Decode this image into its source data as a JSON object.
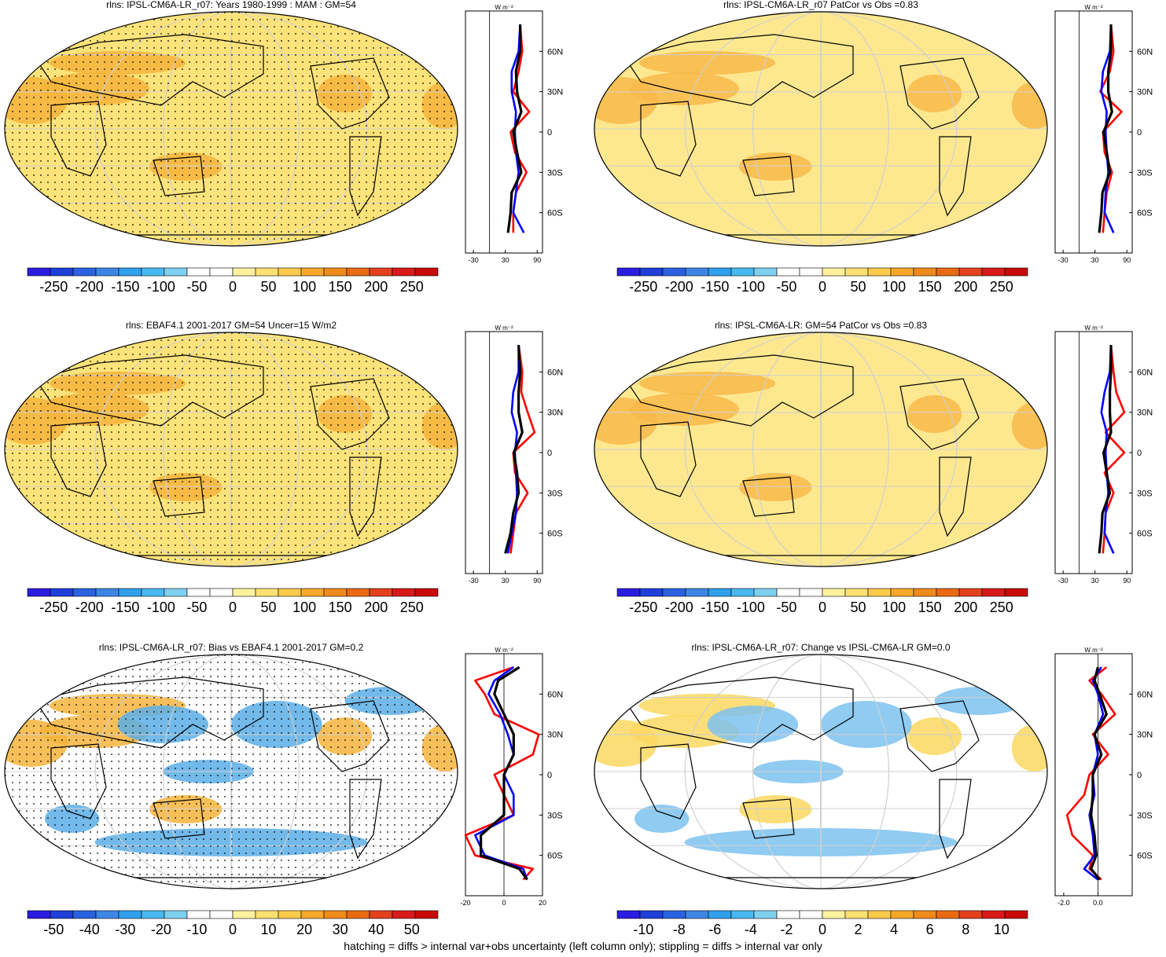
{
  "footer": "hatching = diffs > internal var+obs uncertainty (left column only); stippling = diffs > internal var only",
  "colors": {
    "map_blue": "#3b8fdc",
    "map_white": "#ffffff",
    "map_yellow": "#fde97a",
    "map_orange": "#f5a623",
    "map_red": "#e23c1f",
    "line_red": "#ff0000",
    "line_blue": "#0000ff",
    "line_black": "#000000"
  },
  "zonal_units": "W m⁻²",
  "lat_ticks": [
    "60N",
    "30N",
    "0",
    "30S",
    "60S"
  ],
  "panels": [
    {
      "title": "rlns: IPSL-CM6A-LR_r07: Years 1980-1999 : MAM : GM=54",
      "colorbar": [
        "-250",
        "-200",
        "-150",
        "-100",
        "-50",
        "0",
        "50",
        "100",
        "150",
        "200",
        "250"
      ],
      "zonal_xticks": [
        "-30",
        "30",
        "90"
      ]
    },
    {
      "title": "rlns: IPSL-CM6A-LR_r07 PatCor vs Obs =0.83",
      "colorbar": [
        "-250",
        "-200",
        "-150",
        "-100",
        "-50",
        "0",
        "50",
        "100",
        "150",
        "200",
        "250"
      ],
      "zonal_xticks": [
        "-30",
        "30",
        "90"
      ]
    },
    {
      "title": "rlns: EBAF4.1 2001-2017 GM=54 Uncer=15 W/m2",
      "colorbar": [
        "-250",
        "-200",
        "-150",
        "-100",
        "-50",
        "0",
        "50",
        "100",
        "150",
        "200",
        "250"
      ],
      "zonal_xticks": [
        "-30",
        "30",
        "90"
      ]
    },
    {
      "title": "rlns: IPSL-CM6A-LR: GM=54 PatCor vs Obs =0.83",
      "colorbar": [
        "-250",
        "-200",
        "-150",
        "-100",
        "-50",
        "0",
        "50",
        "100",
        "150",
        "200",
        "250"
      ],
      "zonal_xticks": [
        "-30",
        "30",
        "90"
      ]
    },
    {
      "title": "rlns: IPSL-CM6A-LR_r07: Bias vs EBAF4.1 2001-2017 GM=0.2",
      "colorbar": [
        "-50",
        "-40",
        "-30",
        "-20",
        "-10",
        "0",
        "10",
        "20",
        "30",
        "40",
        "50"
      ],
      "zonal_xticks": [
        "-20",
        "0",
        "20"
      ]
    },
    {
      "title": "rlns: IPSL-CM6A-LR_r07: Change vs IPSL-CM6A-LR GM=0.0",
      "colorbar": [
        "-10",
        "-8",
        "-6",
        "-4",
        "-2",
        "0",
        "2",
        "4",
        "6",
        "8",
        "10"
      ],
      "zonal_xticks": [
        "-2.0",
        "0.0"
      ]
    }
  ],
  "chart_data": [
    {
      "type": "heatmap",
      "title": "rlns: IPSL-CM6A-LR_r07: Years 1980-1999 : MAM : GM=54",
      "ylim": [
        -90,
        90
      ],
      "zonal_means": {
        "lat": [
          80,
          60,
          45,
          30,
          15,
          0,
          -15,
          -30,
          -45,
          -60,
          -75
        ],
        "red": [
          58,
          62,
          55,
          45,
          75,
          40,
          48,
          70,
          50,
          45,
          45
        ],
        "blue": [
          58,
          55,
          42,
          42,
          50,
          48,
          50,
          55,
          50,
          45,
          65
        ],
        "black": [
          58,
          58,
          50,
          52,
          60,
          45,
          52,
          60,
          42,
          40,
          35
        ]
      }
    },
    {
      "type": "heatmap",
      "title": "rlns: IPSL-CM6A-LR_r07 PatCor vs Obs =0.83",
      "ylim": [
        -90,
        90
      ],
      "zonal_means": {
        "lat": [
          80,
          60,
          45,
          30,
          15,
          0,
          -15,
          -30,
          -45,
          -60,
          -75
        ],
        "red": [
          60,
          65,
          58,
          40,
          80,
          45,
          48,
          62,
          52,
          48,
          45
        ],
        "blue": [
          60,
          58,
          45,
          42,
          52,
          50,
          52,
          55,
          50,
          48,
          65
        ],
        "black": [
          60,
          60,
          55,
          55,
          62,
          46,
          52,
          58,
          44,
          42,
          38
        ]
      }
    },
    {
      "type": "heatmap",
      "title": "rlns: EBAF4.1 2001-2017 GM=54 Uncer=15 W/m2",
      "ylim": [
        -90,
        90
      ],
      "zonal_means": {
        "lat": [
          80,
          60,
          45,
          30,
          15,
          0,
          -15,
          -30,
          -45,
          -60,
          -75
        ],
        "red": [
          55,
          62,
          60,
          72,
          85,
          45,
          48,
          72,
          50,
          45,
          40
        ],
        "blue": [
          55,
          55,
          45,
          42,
          52,
          48,
          50,
          52,
          50,
          42,
          35
        ],
        "black": [
          55,
          58,
          55,
          55,
          62,
          46,
          52,
          55,
          45,
          40,
          30
        ]
      }
    },
    {
      "type": "heatmap",
      "title": "rlns: IPSL-CM6A-LR: GM=54 PatCor vs Obs =0.83",
      "ylim": [
        -90,
        90
      ],
      "zonal_means": {
        "lat": [
          80,
          60,
          45,
          30,
          15,
          0,
          -15,
          -30,
          -45,
          -60,
          -75
        ],
        "red": [
          60,
          65,
          70,
          85,
          50,
          85,
          48,
          65,
          50,
          48,
          45
        ],
        "blue": [
          60,
          58,
          48,
          42,
          52,
          50,
          52,
          55,
          50,
          48,
          65
        ],
        "black": [
          60,
          60,
          58,
          58,
          60,
          46,
          52,
          58,
          44,
          42,
          38
        ]
      }
    },
    {
      "type": "heatmap",
      "title": "rlns: IPSL-CM6A-LR_r07: Bias vs EBAF4.1 2001-2017 GM=0.2",
      "ylim": [
        -90,
        90
      ],
      "zonal_means": {
        "lat": [
          80,
          70,
          60,
          45,
          30,
          15,
          0,
          -15,
          -30,
          -45,
          -60,
          -70,
          -78
        ],
        "red": [
          5,
          -15,
          -10,
          -5,
          18,
          15,
          -5,
          0,
          5,
          -20,
          -15,
          15,
          10
        ],
        "blue": [
          5,
          -5,
          -8,
          -2,
          2,
          5,
          0,
          5,
          5,
          -15,
          -10,
          10,
          12
        ],
        "black": [
          8,
          -3,
          -5,
          0,
          5,
          5,
          0,
          0,
          0,
          -12,
          -12,
          8,
          12
        ]
      }
    },
    {
      "type": "heatmap",
      "title": "rlns: IPSL-CM6A-LR_r07: Change vs IPSL-CM6A-LR GM=0.0",
      "ylim": [
        -90,
        90
      ],
      "zonal_means": {
        "lat": [
          80,
          70,
          60,
          45,
          30,
          15,
          0,
          -15,
          -30,
          -45,
          -60,
          -70,
          -78
        ],
        "red": [
          0.5,
          -0.5,
          0.2,
          1.0,
          -0.3,
          0.6,
          -0.5,
          -0.8,
          -1.8,
          -1.5,
          -0.3,
          -0.5,
          0.2
        ],
        "blue": [
          0.2,
          -0.3,
          0.0,
          0.3,
          -0.2,
          0.0,
          -0.3,
          -0.2,
          -0.5,
          -0.3,
          -0.2,
          -0.8,
          0.0
        ],
        "black": [
          0.0,
          -0.2,
          0.1,
          0.5,
          -0.2,
          0.2,
          -0.3,
          -0.3,
          -0.4,
          -0.2,
          -0.1,
          -0.4,
          0.1
        ]
      }
    }
  ]
}
